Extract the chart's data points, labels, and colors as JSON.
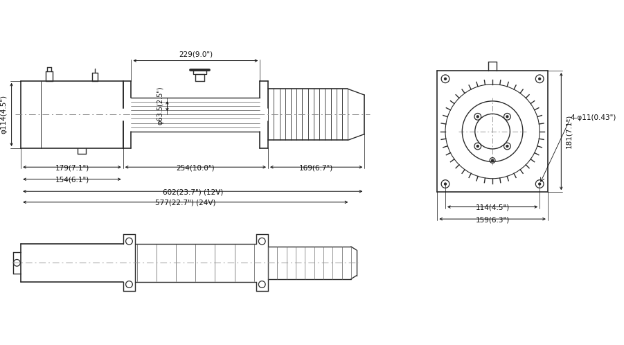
{
  "bg_color": "#ffffff",
  "line_color": "#2a2a2a",
  "dim_color": "#111111",
  "annotations": {
    "phi114": "φ114(4.5\")",
    "phi63": "φ63.5(2.5\")",
    "dim229": "229(9.0\")",
    "dim179": "179(7.1\")",
    "dim254": "254(10.0\")",
    "dim169": "169(6.7\")",
    "dim154": "154(6.1\")",
    "dim602": "602(23.7\") (12V)",
    "dim577": "577(22.7\") (24V)",
    "dim181": "181(7.1\")",
    "dim4phi11": "4-φ11(0.43\")",
    "dim114": "114(4.5\")",
    "dim159": "159(6.3\")"
  },
  "fontsize_dim": 7.5
}
